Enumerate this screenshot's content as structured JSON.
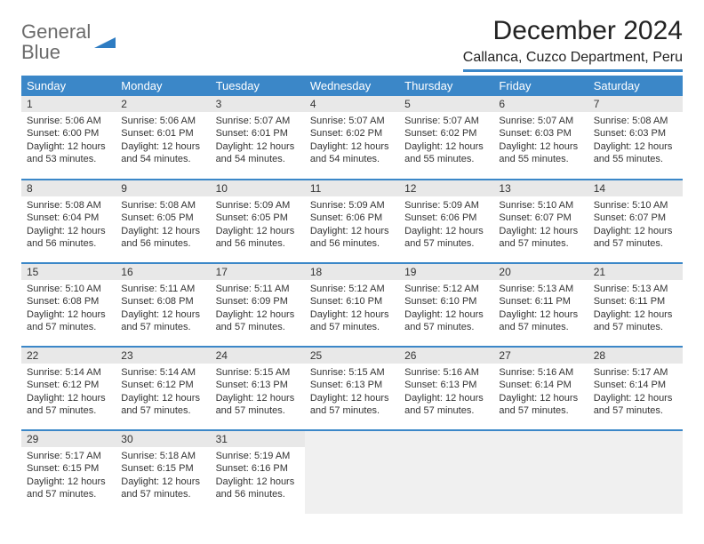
{
  "logo": {
    "line1": "General",
    "line2": "Blue"
  },
  "title": "December 2024",
  "location": "Callanca, Cuzco Department, Peru",
  "colors": {
    "header_bg": "#3b87c8",
    "header_text": "#ffffff",
    "daynum_bg": "#e8e8e8",
    "border": "#3b87c8",
    "body_text": "#333333",
    "logo_gray": "#6b6b6b",
    "logo_blue": "#2e7cc2",
    "empty_bg": "#f0f0f0",
    "page_bg": "#ffffff"
  },
  "weekdays": [
    "Sunday",
    "Monday",
    "Tuesday",
    "Wednesday",
    "Thursday",
    "Friday",
    "Saturday"
  ],
  "days": [
    {
      "n": 1,
      "sunrise": "5:06 AM",
      "sunset": "6:00 PM",
      "daylight": "12 hours and 53 minutes."
    },
    {
      "n": 2,
      "sunrise": "5:06 AM",
      "sunset": "6:01 PM",
      "daylight": "12 hours and 54 minutes."
    },
    {
      "n": 3,
      "sunrise": "5:07 AM",
      "sunset": "6:01 PM",
      "daylight": "12 hours and 54 minutes."
    },
    {
      "n": 4,
      "sunrise": "5:07 AM",
      "sunset": "6:02 PM",
      "daylight": "12 hours and 54 minutes."
    },
    {
      "n": 5,
      "sunrise": "5:07 AM",
      "sunset": "6:02 PM",
      "daylight": "12 hours and 55 minutes."
    },
    {
      "n": 6,
      "sunrise": "5:07 AM",
      "sunset": "6:03 PM",
      "daylight": "12 hours and 55 minutes."
    },
    {
      "n": 7,
      "sunrise": "5:08 AM",
      "sunset": "6:03 PM",
      "daylight": "12 hours and 55 minutes."
    },
    {
      "n": 8,
      "sunrise": "5:08 AM",
      "sunset": "6:04 PM",
      "daylight": "12 hours and 56 minutes."
    },
    {
      "n": 9,
      "sunrise": "5:08 AM",
      "sunset": "6:05 PM",
      "daylight": "12 hours and 56 minutes."
    },
    {
      "n": 10,
      "sunrise": "5:09 AM",
      "sunset": "6:05 PM",
      "daylight": "12 hours and 56 minutes."
    },
    {
      "n": 11,
      "sunrise": "5:09 AM",
      "sunset": "6:06 PM",
      "daylight": "12 hours and 56 minutes."
    },
    {
      "n": 12,
      "sunrise": "5:09 AM",
      "sunset": "6:06 PM",
      "daylight": "12 hours and 57 minutes."
    },
    {
      "n": 13,
      "sunrise": "5:10 AM",
      "sunset": "6:07 PM",
      "daylight": "12 hours and 57 minutes."
    },
    {
      "n": 14,
      "sunrise": "5:10 AM",
      "sunset": "6:07 PM",
      "daylight": "12 hours and 57 minutes."
    },
    {
      "n": 15,
      "sunrise": "5:10 AM",
      "sunset": "6:08 PM",
      "daylight": "12 hours and 57 minutes."
    },
    {
      "n": 16,
      "sunrise": "5:11 AM",
      "sunset": "6:08 PM",
      "daylight": "12 hours and 57 minutes."
    },
    {
      "n": 17,
      "sunrise": "5:11 AM",
      "sunset": "6:09 PM",
      "daylight": "12 hours and 57 minutes."
    },
    {
      "n": 18,
      "sunrise": "5:12 AM",
      "sunset": "6:10 PM",
      "daylight": "12 hours and 57 minutes."
    },
    {
      "n": 19,
      "sunrise": "5:12 AM",
      "sunset": "6:10 PM",
      "daylight": "12 hours and 57 minutes."
    },
    {
      "n": 20,
      "sunrise": "5:13 AM",
      "sunset": "6:11 PM",
      "daylight": "12 hours and 57 minutes."
    },
    {
      "n": 21,
      "sunrise": "5:13 AM",
      "sunset": "6:11 PM",
      "daylight": "12 hours and 57 minutes."
    },
    {
      "n": 22,
      "sunrise": "5:14 AM",
      "sunset": "6:12 PM",
      "daylight": "12 hours and 57 minutes."
    },
    {
      "n": 23,
      "sunrise": "5:14 AM",
      "sunset": "6:12 PM",
      "daylight": "12 hours and 57 minutes."
    },
    {
      "n": 24,
      "sunrise": "5:15 AM",
      "sunset": "6:13 PM",
      "daylight": "12 hours and 57 minutes."
    },
    {
      "n": 25,
      "sunrise": "5:15 AM",
      "sunset": "6:13 PM",
      "daylight": "12 hours and 57 minutes."
    },
    {
      "n": 26,
      "sunrise": "5:16 AM",
      "sunset": "6:13 PM",
      "daylight": "12 hours and 57 minutes."
    },
    {
      "n": 27,
      "sunrise": "5:16 AM",
      "sunset": "6:14 PM",
      "daylight": "12 hours and 57 minutes."
    },
    {
      "n": 28,
      "sunrise": "5:17 AM",
      "sunset": "6:14 PM",
      "daylight": "12 hours and 57 minutes."
    },
    {
      "n": 29,
      "sunrise": "5:17 AM",
      "sunset": "6:15 PM",
      "daylight": "12 hours and 57 minutes."
    },
    {
      "n": 30,
      "sunrise": "5:18 AM",
      "sunset": "6:15 PM",
      "daylight": "12 hours and 57 minutes."
    },
    {
      "n": 31,
      "sunrise": "5:19 AM",
      "sunset": "6:16 PM",
      "daylight": "12 hours and 56 minutes."
    }
  ],
  "labels": {
    "sunrise": "Sunrise:",
    "sunset": "Sunset:",
    "daylight": "Daylight:"
  },
  "grid": {
    "start_weekday": 0,
    "total_cells": 35
  }
}
